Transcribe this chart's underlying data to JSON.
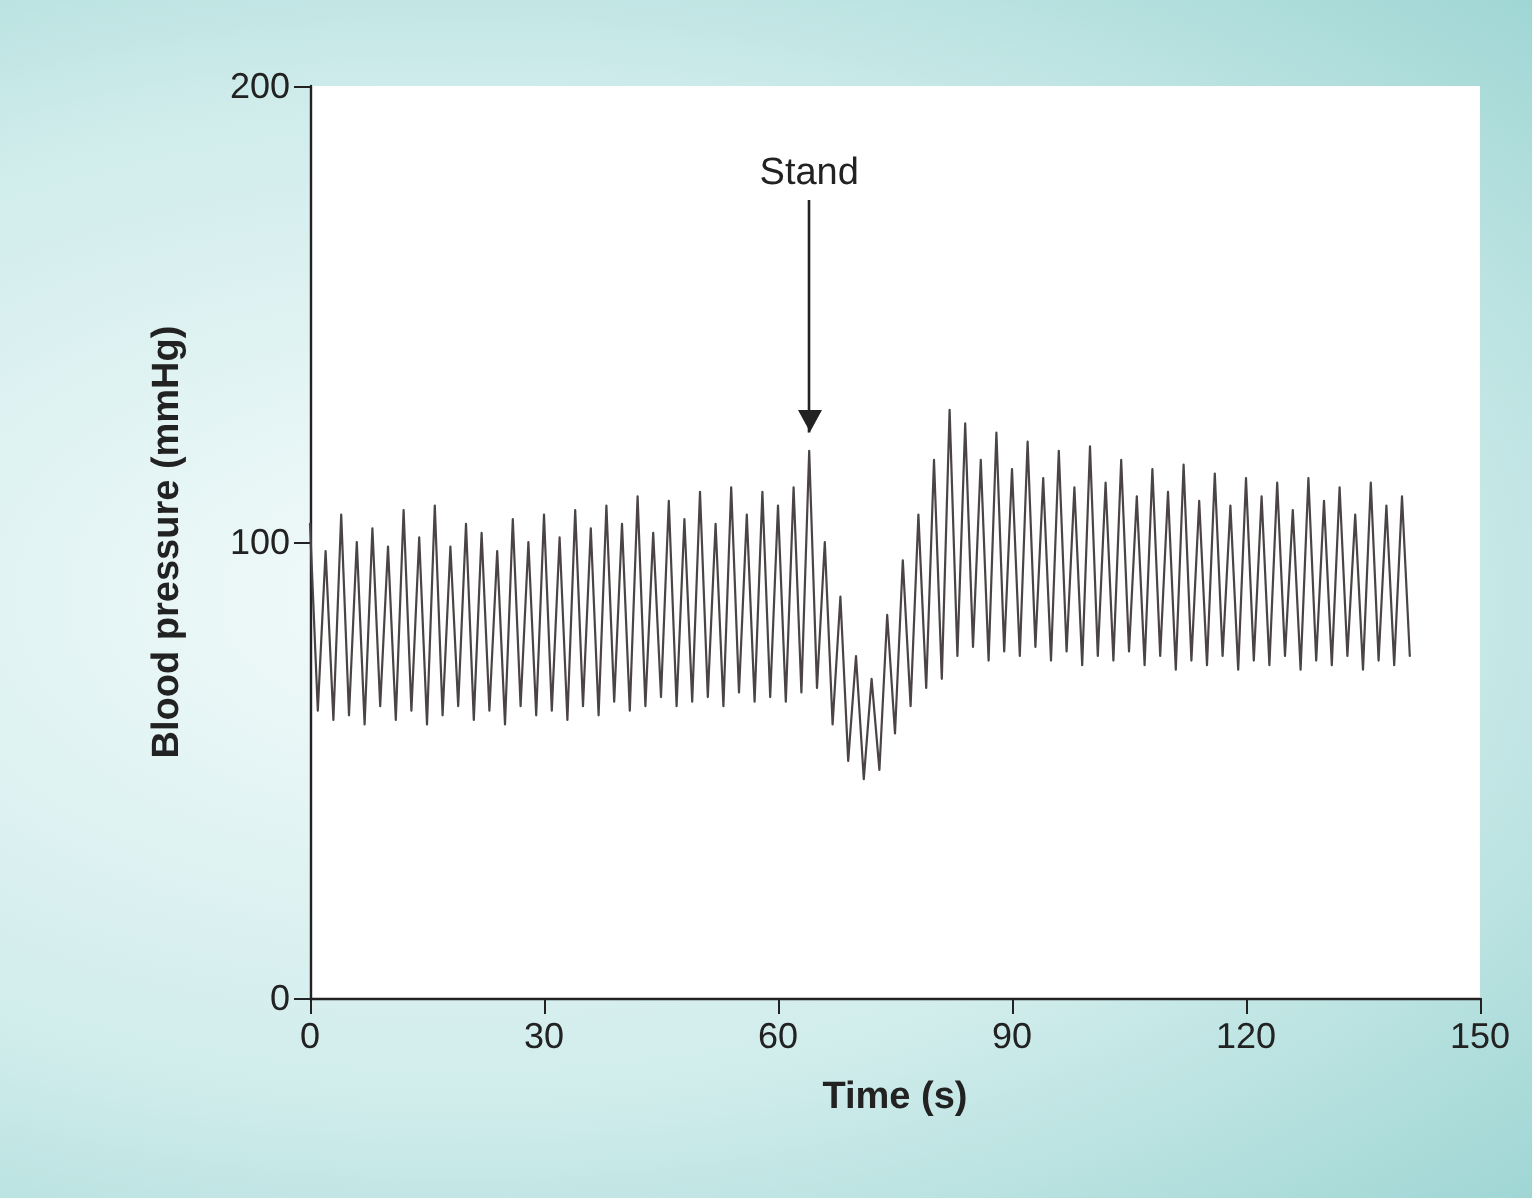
{
  "chart_data": {
    "type": "line",
    "xlabel": "Time (s)",
    "ylabel": "Blood pressure (mmHg)",
    "ref_lines": [
      {
        "axis": "x",
        "value": 64,
        "label": "Stand"
      }
    ],
    "x": [
      0,
      1,
      2,
      3,
      4,
      5,
      6,
      7,
      8,
      9,
      10,
      11,
      12,
      13,
      14,
      15,
      16,
      17,
      18,
      19,
      20,
      21,
      22,
      23,
      24,
      25,
      26,
      27,
      28,
      29,
      30,
      31,
      32,
      33,
      34,
      35,
      36,
      37,
      38,
      39,
      40,
      41,
      42,
      43,
      44,
      45,
      46,
      47,
      48,
      49,
      50,
      51,
      52,
      53,
      54,
      55,
      56,
      57,
      58,
      59,
      60,
      61,
      62,
      63,
      64,
      65,
      66,
      67,
      68,
      69,
      70,
      71,
      72,
      73,
      74,
      75,
      76,
      77,
      78,
      79,
      80,
      81,
      82,
      83,
      84,
      85,
      86,
      87,
      88,
      89,
      90,
      91,
      92,
      93,
      94,
      95,
      96,
      97,
      98,
      99,
      100,
      101,
      102,
      103,
      104,
      105,
      106,
      107,
      108,
      109,
      110,
      111,
      112,
      113,
      114,
      115,
      116,
      117,
      118,
      119,
      120,
      121,
      122,
      123,
      124,
      125,
      126,
      127,
      128,
      129,
      130,
      131,
      132,
      133,
      134,
      135,
      136,
      137,
      138,
      139,
      140,
      141
    ],
    "series": [
      {
        "color": "#4a4444",
        "values": [
          104,
          63,
          98,
          61,
          106,
          62,
          100,
          60,
          103,
          64,
          99,
          61,
          107,
          63,
          101,
          60,
          108,
          62,
          99,
          64,
          104,
          61,
          102,
          63,
          98,
          60,
          105,
          64,
          100,
          62,
          106,
          63,
          101,
          61,
          107,
          64,
          103,
          62,
          108,
          65,
          104,
          63,
          110,
          64,
          102,
          66,
          109,
          64,
          105,
          65,
          111,
          66,
          104,
          64,
          112,
          67,
          106,
          65,
          111,
          66,
          108,
          65,
          112,
          67,
          120,
          68,
          100,
          60,
          88,
          52,
          75,
          48,
          70,
          50,
          84,
          58,
          96,
          64,
          106,
          68,
          118,
          70,
          129,
          75,
          126,
          77,
          118,
          74,
          124,
          76,
          116,
          75,
          122,
          77,
          114,
          74,
          120,
          76,
          112,
          73,
          121,
          75,
          113,
          74,
          118,
          76,
          110,
          73,
          116,
          75,
          111,
          72,
          117,
          74,
          109,
          73,
          115,
          75,
          108,
          72,
          114,
          74,
          110,
          73,
          113,
          75,
          107,
          72,
          114,
          74,
          109,
          73,
          112,
          75,
          106,
          72,
          113,
          74,
          108,
          73,
          110,
          75
        ]
      }
    ],
    "xlim": [
      0,
      150
    ],
    "xticks": [
      0,
      30,
      60,
      90,
      120,
      150
    ],
    "ylim": [
      0,
      200
    ],
    "yticks": [
      0,
      100,
      200
    ],
    "marker": "none",
    "line_style": "solid",
    "grid": false
  }
}
